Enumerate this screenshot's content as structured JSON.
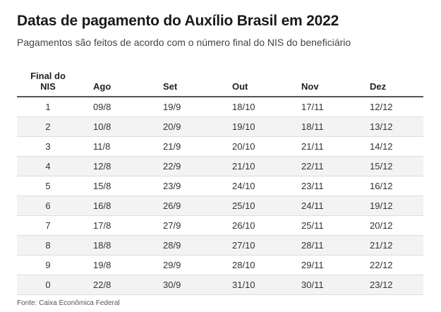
{
  "title": "Datas de pagamento do Auxílio Brasil em 2022",
  "subtitle": "Pagamentos são feitos de acordo com o número final do NIS do beneficiário",
  "table": {
    "headers": [
      "Final do\nNIS",
      "Ago",
      "Set",
      "Out",
      "Nov",
      "Dez"
    ],
    "rows": [
      [
        "1",
        "09/8",
        "19/9",
        "18/10",
        "17/11",
        "12/12"
      ],
      [
        "2",
        "10/8",
        "20/9",
        "19/10",
        "18/11",
        "13/12"
      ],
      [
        "3",
        "11/8",
        "21/9",
        "20/10",
        "21/11",
        "14/12"
      ],
      [
        "4",
        "12/8",
        "22/9",
        "21/10",
        "22/11",
        "15/12"
      ],
      [
        "5",
        "15/8",
        "23/9",
        "24/10",
        "23/11",
        "16/12"
      ],
      [
        "6",
        "16/8",
        "26/9",
        "25/10",
        "24/11",
        "19/12"
      ],
      [
        "7",
        "17/8",
        "27/9",
        "26/10",
        "25/11",
        "20/12"
      ],
      [
        "8",
        "18/8",
        "28/9",
        "27/10",
        "28/11",
        "21/12"
      ],
      [
        "9",
        "19/8",
        "29/9",
        "28/10",
        "29/11",
        "22/12"
      ],
      [
        "0",
        "22/8",
        "30/9",
        "31/10",
        "30/11",
        "23/12"
      ]
    ]
  },
  "source": "Fonte: Caixa Econômica Federal"
}
